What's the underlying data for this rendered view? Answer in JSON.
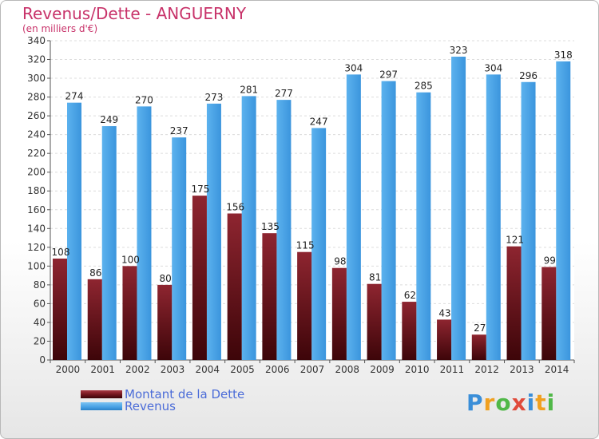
{
  "header": {
    "title": "Revenus/Dette - ANGUERNY",
    "subtitle": "(en milliers d'€)"
  },
  "chart_data": {
    "type": "bar",
    "categories": [
      "2000",
      "2001",
      "2002",
      "2003",
      "2004",
      "2005",
      "2006",
      "2007",
      "2008",
      "2009",
      "2010",
      "2011",
      "2012",
      "2013",
      "2014"
    ],
    "series": [
      {
        "name": "Montant de la Dette",
        "color": "#7a1a22",
        "values": [
          108,
          86,
          100,
          80,
          175,
          156,
          135,
          115,
          98,
          81,
          62,
          43,
          27,
          121,
          99
        ]
      },
      {
        "name": "Revenus",
        "color": "#4aa3e6",
        "values": [
          274,
          249,
          270,
          237,
          273,
          281,
          277,
          247,
          304,
          297,
          285,
          323,
          304,
          296,
          318
        ]
      }
    ],
    "ylim": [
      0,
      340
    ],
    "yticks": [
      "0",
      "20",
      "40",
      "60",
      "80",
      "100",
      "120",
      "140",
      "160",
      "180",
      "200",
      "220",
      "240",
      "260",
      "280",
      "300",
      "320",
      "340"
    ],
    "grid": true,
    "legend_position": "bottom-left"
  },
  "legend": {
    "items": [
      {
        "label": "Montant de la Dette",
        "color": "#7a1a22"
      },
      {
        "label": "Revenus",
        "color": "#4aa3e6"
      }
    ]
  },
  "logo": {
    "letters": [
      "P",
      "r",
      "o",
      "x",
      "i",
      "t",
      "i"
    ],
    "colors": [
      "#3a8ed8",
      "#f0a020",
      "#50b848",
      "#e04a3a",
      "#3a8ed8",
      "#f0a020",
      "#50b848"
    ]
  }
}
